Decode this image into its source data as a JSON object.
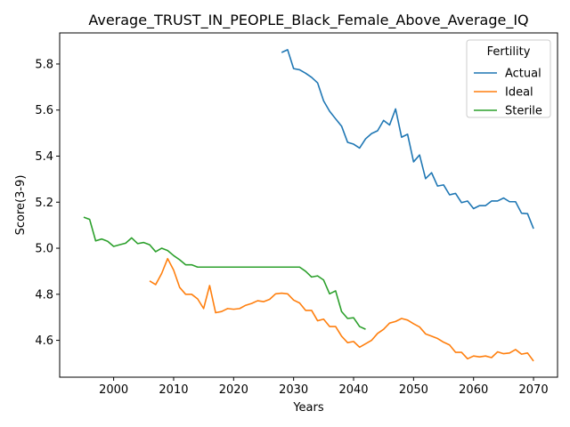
{
  "chart_data": {
    "type": "line",
    "title": "Average_TRUST_IN_PEOPLE_Black_Female_Above_Average_IQ",
    "xlabel": "Years",
    "ylabel": "Score(3-9)",
    "xlim": [
      1991,
      2074
    ],
    "ylim": [
      4.44,
      5.935
    ],
    "xticks": [
      2000,
      2010,
      2020,
      2030,
      2040,
      2050,
      2060,
      2070
    ],
    "yticks": [
      4.6,
      4.8,
      5.0,
      5.2,
      5.4,
      5.6,
      5.8
    ],
    "ytick_labels": [
      "4.6",
      "4.8",
      "5.0",
      "5.2",
      "5.4",
      "5.6",
      "5.8"
    ],
    "grid": false,
    "legend": {
      "title": "Fertility",
      "placement": "top-right"
    },
    "series": [
      {
        "name": "Actual",
        "color": "#1f77b4",
        "x": [
          2028,
          2029,
          2030,
          2031,
          2032,
          2033,
          2034,
          2035,
          2036,
          2037,
          2038,
          2039,
          2040,
          2041,
          2042,
          2043,
          2044,
          2045,
          2046,
          2047,
          2048,
          2049,
          2050,
          2051,
          2052,
          2053,
          2054,
          2055,
          2056,
          2057,
          2058,
          2059,
          2060,
          2061,
          2062,
          2063,
          2064,
          2065,
          2066,
          2067,
          2068,
          2069,
          2070
        ],
        "y": [
          5.85,
          5.862,
          5.78,
          5.775,
          5.76,
          5.742,
          5.718,
          5.64,
          5.595,
          5.562,
          5.53,
          5.46,
          5.452,
          5.435,
          5.475,
          5.498,
          5.51,
          5.555,
          5.535,
          5.605,
          5.482,
          5.495,
          5.375,
          5.405,
          5.302,
          5.328,
          5.27,
          5.275,
          5.232,
          5.238,
          5.198,
          5.205,
          5.172,
          5.185,
          5.185,
          5.205,
          5.205,
          5.218,
          5.202,
          5.202,
          5.152,
          5.15,
          5.085
        ]
      },
      {
        "name": "Ideal",
        "color": "#ff7f0e",
        "x": [
          2006,
          2007,
          2008,
          2009,
          2010,
          2011,
          2012,
          2013,
          2014,
          2015,
          2016,
          2017,
          2018,
          2019,
          2020,
          2021,
          2022,
          2023,
          2024,
          2025,
          2026,
          2027,
          2028,
          2029,
          2030,
          2031,
          2032,
          2033,
          2034,
          2035,
          2036,
          2037,
          2038,
          2039,
          2040,
          2041,
          2042,
          2043,
          2044,
          2045,
          2046,
          2047,
          2048,
          2049,
          2050,
          2051,
          2052,
          2053,
          2054,
          2055,
          2056,
          2057,
          2058,
          2059,
          2060,
          2061,
          2062,
          2063,
          2064,
          2065,
          2066,
          2067,
          2068,
          2069,
          2070
        ],
        "y": [
          4.858,
          4.842,
          4.89,
          4.955,
          4.905,
          4.83,
          4.8,
          4.8,
          4.78,
          4.738,
          4.838,
          4.72,
          4.725,
          4.738,
          4.735,
          4.738,
          4.752,
          4.76,
          4.772,
          4.768,
          4.778,
          4.802,
          4.805,
          4.802,
          4.775,
          4.762,
          4.73,
          4.73,
          4.685,
          4.692,
          4.66,
          4.66,
          4.618,
          4.59,
          4.595,
          4.57,
          4.585,
          4.6,
          4.63,
          4.648,
          4.675,
          4.682,
          4.695,
          4.688,
          4.672,
          4.658,
          4.628,
          4.618,
          4.608,
          4.592,
          4.58,
          4.548,
          4.548,
          4.52,
          4.532,
          4.528,
          4.532,
          4.525,
          4.55,
          4.542,
          4.545,
          4.56,
          4.54,
          4.545,
          4.51
        ]
      },
      {
        "name": "Sterile",
        "color": "#2ca02c",
        "x": [
          1995,
          1996,
          1997,
          1998,
          1999,
          2000,
          2001,
          2002,
          2003,
          2004,
          2005,
          2006,
          2007,
          2008,
          2009,
          2010,
          2011,
          2012,
          2013,
          2014,
          2015,
          2016,
          2017,
          2018,
          2019,
          2020,
          2021,
          2022,
          2023,
          2024,
          2025,
          2026,
          2027,
          2028,
          2029,
          2030,
          2031,
          2032,
          2033,
          2034,
          2035,
          2036,
          2037,
          2038,
          2039,
          2040,
          2041,
          2042
        ],
        "y": [
          5.135,
          5.125,
          5.032,
          5.04,
          5.03,
          5.008,
          5.015,
          5.022,
          5.045,
          5.02,
          5.025,
          5.015,
          4.985,
          5.0,
          4.99,
          4.968,
          4.95,
          4.928,
          4.928,
          4.918,
          4.918,
          4.918,
          4.918,
          4.918,
          4.918,
          4.918,
          4.918,
          4.918,
          4.918,
          4.918,
          4.918,
          4.918,
          4.918,
          4.918,
          4.918,
          4.918,
          4.918,
          4.9,
          4.875,
          4.88,
          4.862,
          4.802,
          4.815,
          4.725,
          4.695,
          4.698,
          4.66,
          4.648
        ]
      }
    ]
  }
}
